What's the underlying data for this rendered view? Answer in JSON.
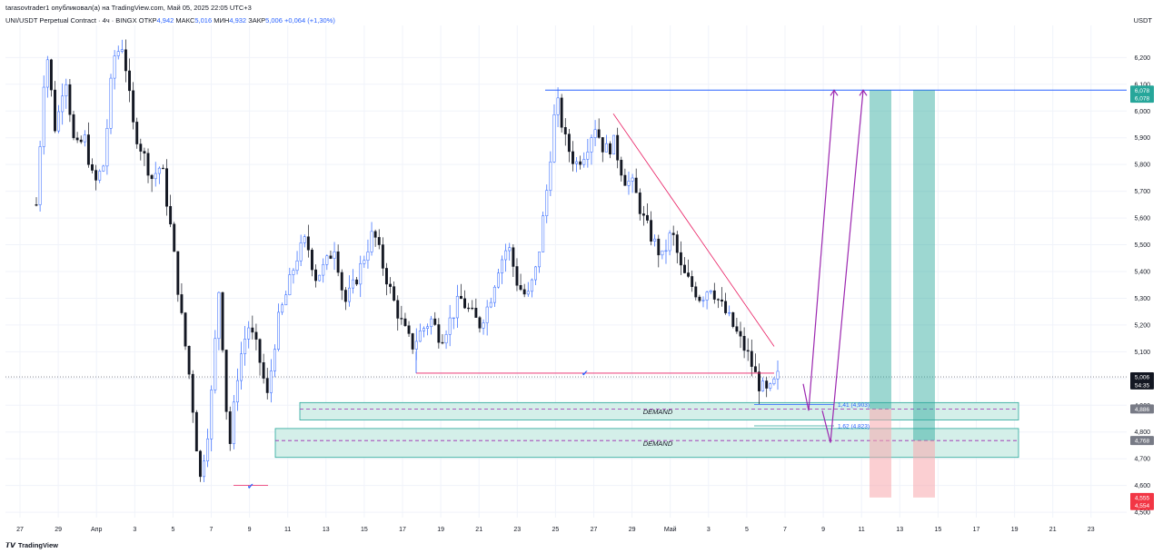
{
  "header": {
    "published": "tarasovtrader1 опубликовал(а) на TradingView.com, Май 05, 2025 22:05 UTC+3",
    "symbol": "UNI/USDT Perpetual Contract · 4ч · BINGX",
    "open_label": "ОТКР",
    "open_value": "4,942",
    "high_label": "МАКС",
    "high_value": "5,016",
    "low_label": "МИН",
    "low_value": "4,932",
    "close_label": "ЗАКР",
    "close_value": "5,006",
    "change": "+0,064 (+1,30%)"
  },
  "currency": "USDT",
  "footer": {
    "brand": "TradingView"
  },
  "colors": {
    "up": "#2962ff",
    "down": "#131722",
    "zone_fill": "#d4efe9",
    "zone_border": "#26a69a",
    "target_green": "#26a69a",
    "stop_red": "#f7a8ad",
    "arrow": "#9c27b0",
    "pink_line": "#e91e63"
  },
  "chart_data": {
    "type": "candlestick",
    "y_axis": {
      "range": [
        4.48,
        6.32
      ],
      "ticks": [
        "6,200",
        "6,100",
        "6,000",
        "5,900",
        "5,800",
        "5,700",
        "5,600",
        "5,500",
        "5,400",
        "5,300",
        "5,200",
        "5,100",
        "5,000",
        "4,900",
        "4,800",
        "4,700",
        "4,600",
        "4,500"
      ]
    },
    "x_axis": {
      "ticks": [
        "27",
        "29",
        "Апр",
        "3",
        "5",
        "7",
        "9",
        "11",
        "13",
        "15",
        "17",
        "19",
        "21",
        "23",
        "25",
        "27",
        "29",
        "Май",
        "3",
        "5",
        "7",
        "9",
        "11",
        "13",
        "15",
        "17",
        "19",
        "21",
        "23"
      ]
    },
    "price_tags": [
      {
        "text": "6,078",
        "price": 6.078,
        "color": "#26a69a"
      },
      {
        "text": "6,078",
        "price": 6.048,
        "color": "#26a69a"
      },
      {
        "text": "5,006",
        "price": 5.006,
        "color": "#131722"
      },
      {
        "text": "54:35",
        "price": 4.976,
        "color": "#131722"
      },
      {
        "text": "4,886",
        "price": 4.886,
        "color": "#787b86"
      },
      {
        "text": "4,768",
        "price": 4.768,
        "color": "#787b86"
      },
      {
        "text": "4,555",
        "price": 4.555,
        "color": "#f23645"
      },
      {
        "text": "4,554",
        "price": 4.525,
        "color": "#f23645"
      }
    ],
    "zones": [
      {
        "label": "DEMAND",
        "top": 4.91,
        "bottom": 4.845,
        "mid": 4.886
      },
      {
        "label": "DEMAND",
        "top": 4.813,
        "bottom": 4.705,
        "mid": 4.768
      }
    ],
    "fib_levels": [
      {
        "label": "1,41 (4,903)",
        "price": 4.903
      },
      {
        "label": "1,62 (4,823)",
        "price": 4.823
      }
    ],
    "target_price": 6.078,
    "stop_price": 4.555,
    "path": [
      5.65,
      6.25,
      5.92,
      6.15,
      5.85,
      5.9,
      5.72,
      5.8,
      6.2,
      6.25,
      5.95,
      5.85,
      5.75,
      5.8,
      5.55,
      5.25,
      4.98,
      4.62,
      4.85,
      5.35,
      4.72,
      5.05,
      5.2,
      5.1,
      4.93,
      5.2,
      5.32,
      5.45,
      5.52,
      5.38,
      5.42,
      5.5,
      5.28,
      5.35,
      5.45,
      5.55,
      5.42,
      5.3,
      5.2,
      5.12,
      5.18,
      5.22,
      5.15,
      5.22,
      5.3,
      5.25,
      5.2,
      5.28,
      5.42,
      5.5,
      5.35,
      5.3,
      5.42,
      5.7,
      6.05,
      5.88,
      5.8,
      5.85,
      5.95,
      5.85,
      5.88,
      5.75,
      5.72,
      5.6,
      5.52,
      5.45,
      5.55,
      5.4,
      5.35,
      5.3,
      5.35,
      5.28,
      5.22,
      5.15,
      5.08,
      4.98,
      4.94,
      5.006
    ]
  }
}
